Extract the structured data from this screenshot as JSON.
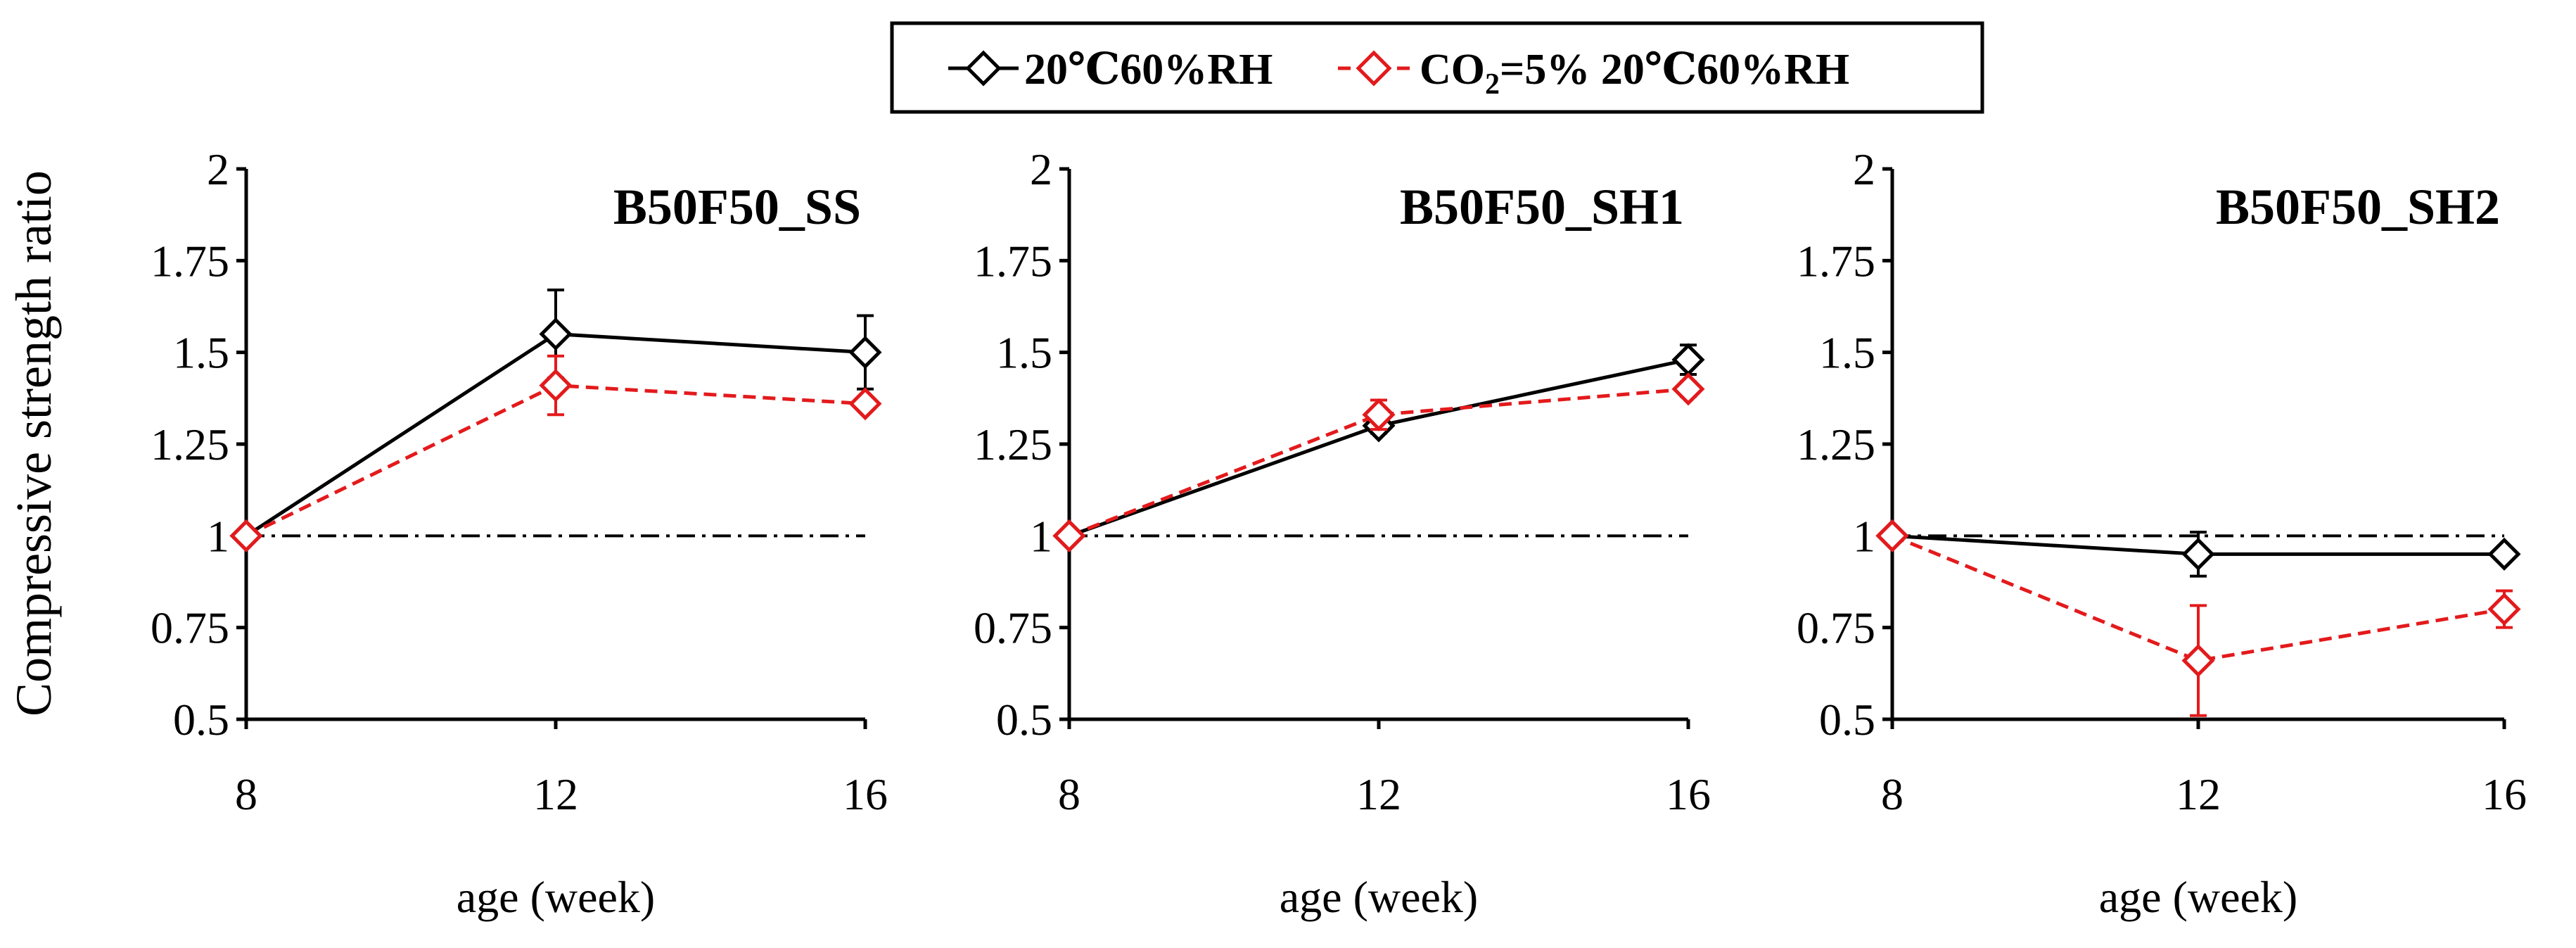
{
  "legend": {
    "series1_label": "20℃60%RH",
    "series2_label_prefix": "CO",
    "series2_label_sub": "2",
    "series2_label_suffix": "=5% 20℃60%RH"
  },
  "shared_ylabel": "Compressive strength ratio",
  "colors": {
    "series1": "#000000",
    "series2": "#e31a1c",
    "reference": "#000000"
  },
  "chart_data": [
    {
      "type": "line",
      "title": "B50F50_SS",
      "xlabel": "age (week)",
      "ylabel": "Compressive strength ratio",
      "x": [
        8,
        12,
        16
      ],
      "xticks": [
        "8",
        "12",
        "16"
      ],
      "ylim": [
        0.5,
        2
      ],
      "yticks": [
        "0.5",
        "0.75",
        "1",
        "1.25",
        "1.5",
        "1.75",
        "2"
      ],
      "reference_line": 1,
      "series": [
        {
          "name": "20℃60%RH",
          "values": [
            1.0,
            1.55,
            1.5
          ],
          "errors": [
            0,
            0.12,
            0.1
          ]
        },
        {
          "name": "CO2=5% 20℃60%RH",
          "values": [
            1.0,
            1.41,
            1.36
          ],
          "errors": [
            0,
            0.08,
            0
          ]
        }
      ]
    },
    {
      "type": "line",
      "title": "B50F50_SH1",
      "xlabel": "age (week)",
      "ylabel": "",
      "x": [
        8,
        12,
        16
      ],
      "xticks": [
        "8",
        "12",
        "16"
      ],
      "ylim": [
        0.5,
        2
      ],
      "yticks": [
        "0.5",
        "0.75",
        "1",
        "1.25",
        "1.5",
        "1.75",
        "2"
      ],
      "reference_line": 1,
      "series": [
        {
          "name": "20℃60%RH",
          "values": [
            1.0,
            1.3,
            1.48
          ],
          "errors": [
            0,
            0.02,
            0.04
          ]
        },
        {
          "name": "CO2=5% 20℃60%RH",
          "values": [
            1.0,
            1.33,
            1.4
          ],
          "errors": [
            0,
            0.04,
            0.02
          ]
        }
      ]
    },
    {
      "type": "line",
      "title": "B50F50_SH2",
      "xlabel": "age (week)",
      "ylabel": "",
      "x": [
        8,
        12,
        16
      ],
      "xticks": [
        "8",
        "12",
        "16"
      ],
      "ylim": [
        0.5,
        2
      ],
      "yticks": [
        "0.5",
        "0.75",
        "1",
        "1.25",
        "1.5",
        "1.75",
        "2"
      ],
      "reference_line": 1,
      "series": [
        {
          "name": "20℃60%RH",
          "values": [
            1.0,
            0.95,
            0.95
          ],
          "errors": [
            0,
            0.06,
            0
          ]
        },
        {
          "name": "CO2=5% 20℃60%RH",
          "values": [
            1.0,
            0.66,
            0.8
          ],
          "errors": [
            0,
            0.15,
            0.05
          ]
        }
      ]
    }
  ]
}
